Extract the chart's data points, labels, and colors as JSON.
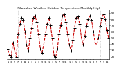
{
  "title": "Milwaukee Weather Outdoor Temperature Monthly High",
  "line_color": "#cc0000",
  "line_style": "--",
  "marker": "+",
  "marker_color": "#000000",
  "marker_size": 3,
  "line_width": 0.8,
  "marker_linewidth": 0.7,
  "grid_color": "#aaaaaa",
  "grid_style": ":",
  "background_color": "#ffffff",
  "ylim": [
    15,
    95
  ],
  "yticks": [
    20,
    30,
    40,
    50,
    60,
    70,
    80,
    90
  ],
  "values": [
    30,
    22,
    18,
    42,
    28,
    18,
    55,
    72,
    82,
    78,
    60,
    38,
    28,
    48,
    65,
    82,
    85,
    75,
    55,
    32,
    25,
    38,
    55,
    72,
    82,
    70,
    48,
    20,
    18,
    32,
    55,
    70,
    85,
    88,
    75,
    55,
    38,
    28,
    45,
    65,
    82,
    84,
    72,
    50,
    38,
    52,
    68,
    80,
    85,
    78,
    60,
    42,
    38,
    50,
    68,
    82,
    88,
    80,
    62,
    48
  ],
  "vline_positions": [
    6,
    18,
    30,
    42,
    54
  ],
  "xtick_step": 2
}
